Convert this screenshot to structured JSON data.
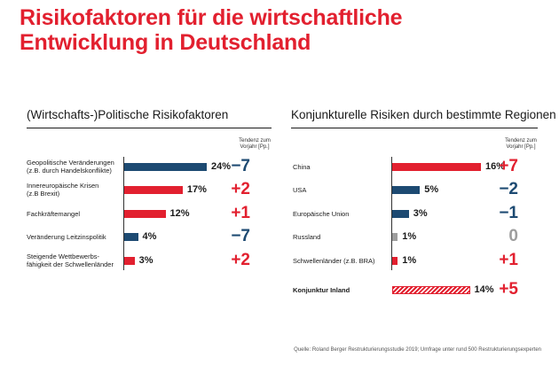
{
  "title_line1": "Risikofaktoren für die wirtschaftliche",
  "title_line2": "Entwicklung in Deutschland",
  "colors": {
    "red": "#e2202f",
    "blue": "#1d4a72",
    "gray": "#9e9e9e",
    "title": "#e2202f"
  },
  "source": "Quelle: Roland Berger Restrukturierungsstudie 2019; Umfrage unter rund 500 Restrukturierungsexperten",
  "chart_data": [
    {
      "type": "bar",
      "title": "(Wirtschafts-)Politische Risikofaktoren",
      "trend_header": [
        "Tendenz zum",
        "Vorjahr [Pp.]"
      ],
      "value_unit": "%",
      "xlim": [
        0,
        24
      ],
      "items": [
        {
          "label": [
            "Geopolitische Veränderungen",
            "(z.B. durch Handelskonflikte)"
          ],
          "value": 24,
          "value_label": "24%",
          "color": "blue",
          "fill": "solid",
          "bold": false,
          "delta": "−7",
          "delta_color": "blue"
        },
        {
          "label": [
            "Innereuropäische Krisen",
            "(z.B Brexit)"
          ],
          "value": 17,
          "value_label": "17%",
          "color": "red",
          "fill": "solid",
          "bold": false,
          "delta": "+2",
          "delta_color": "red"
        },
        {
          "label": [
            "Fachkräftemangel"
          ],
          "value": 12,
          "value_label": "12%",
          "color": "red",
          "fill": "solid",
          "bold": false,
          "delta": "+1",
          "delta_color": "red"
        },
        {
          "label": [
            "Veränderung Leitzinspolitik"
          ],
          "value": 4,
          "value_label": "4%",
          "color": "blue",
          "fill": "solid",
          "bold": false,
          "delta": "−7",
          "delta_color": "blue"
        },
        {
          "label": [
            "Steigende Wettbewerbs-",
            "fähigkeit der Schwellenländer"
          ],
          "value": 3,
          "value_label": "3%",
          "color": "red",
          "fill": "solid",
          "bold": false,
          "delta": "+2",
          "delta_color": "red"
        }
      ]
    },
    {
      "type": "bar",
      "title": "Konjunkturelle Risiken durch bestimmte Regionen",
      "trend_header": [
        "Tendenz zum",
        "Vorjahr [Pp.]"
      ],
      "value_unit": "%",
      "xlim": [
        0,
        16
      ],
      "items": [
        {
          "label": [
            "China"
          ],
          "value": 16,
          "value_label": "16%",
          "color": "red",
          "fill": "solid",
          "bold": false,
          "delta": "+7",
          "delta_color": "red"
        },
        {
          "label": [
            "USA"
          ],
          "value": 5,
          "value_label": "5%",
          "color": "blue",
          "fill": "solid",
          "bold": false,
          "delta": "−2",
          "delta_color": "blue"
        },
        {
          "label": [
            "Europäische Union"
          ],
          "value": 3,
          "value_label": "3%",
          "color": "blue",
          "fill": "solid",
          "bold": false,
          "delta": "−1",
          "delta_color": "blue"
        },
        {
          "label": [
            "Russland"
          ],
          "value": 1,
          "value_label": "1%",
          "color": "gray",
          "fill": "solid",
          "bold": false,
          "delta": "0",
          "delta_color": "gray"
        },
        {
          "label": [
            "Schwellenländer (z.B. BRA)"
          ],
          "value": 1,
          "value_label": "1%",
          "color": "red",
          "fill": "solid",
          "bold": false,
          "delta": "+1",
          "delta_color": "red"
        },
        {
          "label": [
            "Konjunktur Inland"
          ],
          "value": 14,
          "value_label": "14%",
          "color": "red",
          "fill": "hatched",
          "bold": true,
          "delta": "+5",
          "delta_color": "red"
        }
      ]
    }
  ]
}
